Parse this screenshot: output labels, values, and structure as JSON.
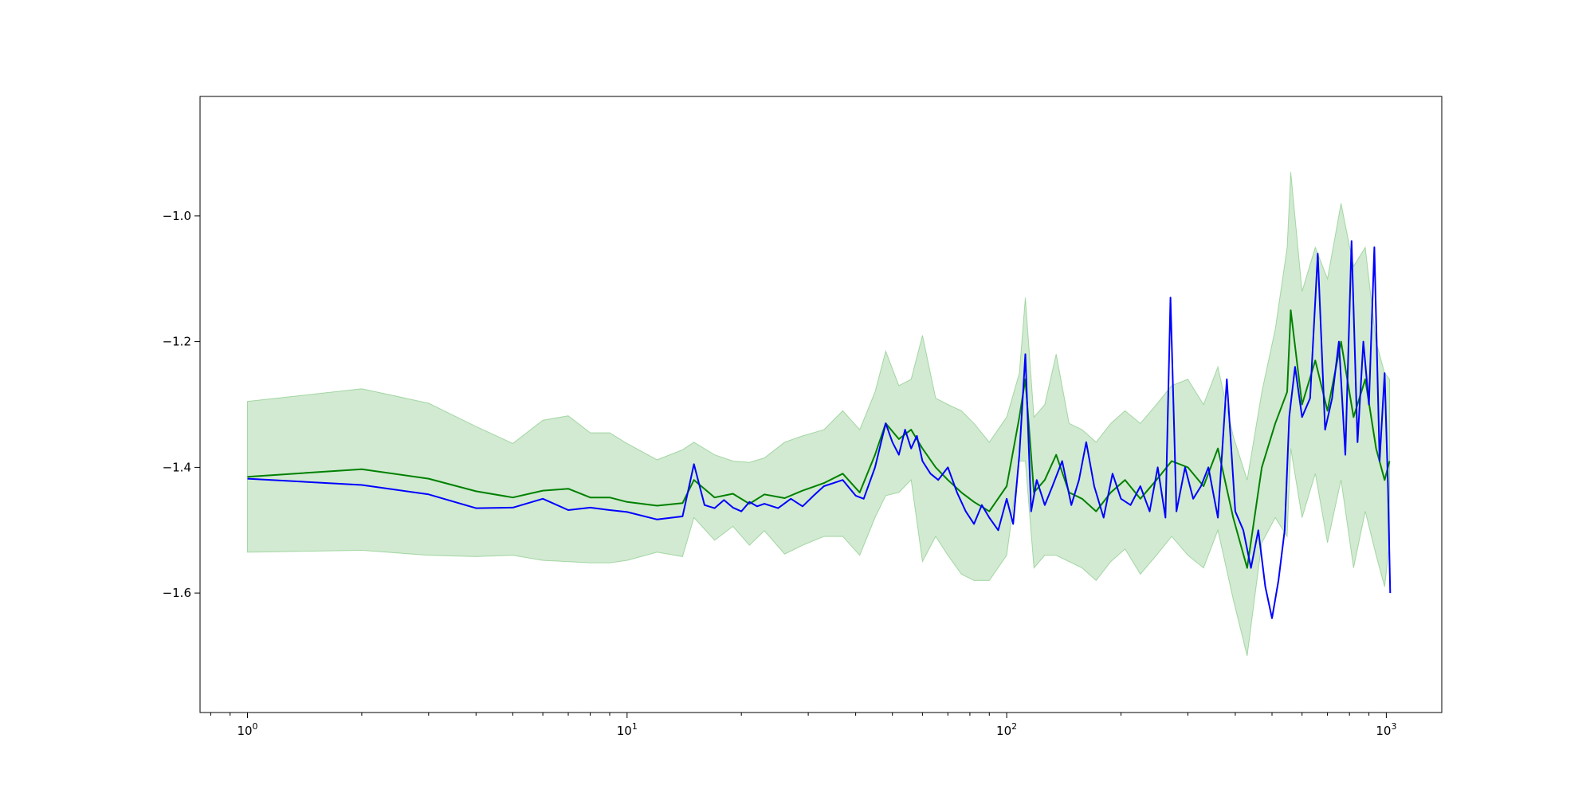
{
  "chart_data": {
    "type": "line",
    "xscale": "log",
    "xlim": [
      0.75,
      1400
    ],
    "ylim": [
      -1.79,
      -0.81
    ],
    "grid": false,
    "x_ticks": [
      {
        "value": 1,
        "base": "10",
        "exp": "0"
      },
      {
        "value": 10,
        "base": "10",
        "exp": "1"
      },
      {
        "value": 100,
        "base": "10",
        "exp": "2"
      },
      {
        "value": 1000,
        "base": "10",
        "exp": "3"
      }
    ],
    "y_ticks": [
      {
        "value": -1.6,
        "label": "−1.6"
      },
      {
        "value": -1.4,
        "label": "−1.4"
      },
      {
        "value": -1.2,
        "label": "−1.2"
      },
      {
        "value": -1.0,
        "label": "−1.0"
      }
    ],
    "series": [
      {
        "color": "#008000",
        "band_color": "#2ca02c",
        "x": [
          1,
          2,
          3,
          4,
          5,
          6,
          7,
          8,
          9,
          10,
          12,
          14,
          15,
          17,
          19,
          21,
          23,
          26,
          29,
          33,
          37,
          41,
          45,
          48,
          52,
          56,
          60,
          65,
          70,
          76,
          82,
          90,
          100,
          108,
          112,
          118,
          126,
          135,
          146,
          158,
          172,
          188,
          205,
          225,
          248,
          272,
          300,
          330,
          360,
          395,
          430,
          470,
          510,
          548,
          560,
          600,
          650,
          700,
          760,
          820,
          880,
          940,
          990,
          1020
        ],
        "y": [
          -1.415,
          -1.403,
          -1.418,
          -1.438,
          -1.448,
          -1.437,
          -1.434,
          -1.448,
          -1.448,
          -1.455,
          -1.461,
          -1.457,
          -1.42,
          -1.448,
          -1.442,
          -1.458,
          -1.443,
          -1.449,
          -1.437,
          -1.425,
          -1.41,
          -1.44,
          -1.38,
          -1.33,
          -1.355,
          -1.34,
          -1.37,
          -1.4,
          -1.42,
          -1.44,
          -1.455,
          -1.47,
          -1.43,
          -1.32,
          -1.26,
          -1.44,
          -1.42,
          -1.38,
          -1.44,
          -1.45,
          -1.47,
          -1.44,
          -1.42,
          -1.45,
          -1.42,
          -1.39,
          -1.4,
          -1.43,
          -1.37,
          -1.48,
          -1.56,
          -1.4,
          -1.33,
          -1.28,
          -1.15,
          -1.3,
          -1.23,
          -1.31,
          -1.2,
          -1.32,
          -1.26,
          -1.37,
          -1.42,
          -1.39
        ],
        "upper": [
          -1.295,
          -1.275,
          -1.298,
          -1.335,
          -1.362,
          -1.325,
          -1.318,
          -1.345,
          -1.345,
          -1.362,
          -1.388,
          -1.372,
          -1.36,
          -1.38,
          -1.39,
          -1.392,
          -1.385,
          -1.36,
          -1.35,
          -1.34,
          -1.31,
          -1.34,
          -1.28,
          -1.215,
          -1.27,
          -1.26,
          -1.19,
          -1.29,
          -1.3,
          -1.31,
          -1.33,
          -1.36,
          -1.32,
          -1.25,
          -1.13,
          -1.32,
          -1.3,
          -1.22,
          -1.33,
          -1.34,
          -1.36,
          -1.33,
          -1.31,
          -1.33,
          -1.3,
          -1.27,
          -1.26,
          -1.3,
          -1.24,
          -1.35,
          -1.42,
          -1.28,
          -1.18,
          -1.05,
          -0.93,
          -1.12,
          -1.05,
          -1.1,
          -0.98,
          -1.08,
          -1.05,
          -1.2,
          -1.25,
          -1.26
        ],
        "lower": [
          -1.535,
          -1.532,
          -1.54,
          -1.542,
          -1.54,
          -1.548,
          -1.55,
          -1.552,
          -1.552,
          -1.548,
          -1.535,
          -1.542,
          -1.48,
          -1.516,
          -1.494,
          -1.524,
          -1.501,
          -1.538,
          -1.524,
          -1.51,
          -1.51,
          -1.54,
          -1.48,
          -1.445,
          -1.44,
          -1.42,
          -1.55,
          -1.51,
          -1.54,
          -1.57,
          -1.58,
          -1.58,
          -1.54,
          -1.39,
          -1.39,
          -1.56,
          -1.54,
          -1.54,
          -1.55,
          -1.56,
          -1.58,
          -1.55,
          -1.53,
          -1.57,
          -1.54,
          -1.51,
          -1.54,
          -1.56,
          -1.5,
          -1.61,
          -1.7,
          -1.52,
          -1.48,
          -1.51,
          -1.37,
          -1.48,
          -1.41,
          -1.52,
          -1.42,
          -1.56,
          -1.47,
          -1.54,
          -1.59,
          -1.52
        ]
      },
      {
        "color": "#0000ff",
        "band_color": "#0000ff",
        "x": [
          1,
          2,
          3,
          4,
          5,
          6,
          7,
          8,
          9,
          10,
          12,
          14,
          15,
          16,
          17,
          18,
          19,
          20,
          21,
          22,
          23,
          25,
          27,
          29,
          31,
          33,
          35,
          37,
          40,
          42,
          45,
          48,
          50,
          52,
          54,
          56,
          58,
          60,
          63,
          66,
          70,
          74,
          78,
          82,
          86,
          90,
          95,
          100,
          104,
          108,
          112,
          116,
          120,
          126,
          132,
          140,
          148,
          155,
          162,
          170,
          180,
          190,
          200,
          212,
          225,
          238,
          250,
          262,
          270,
          280,
          295,
          310,
          325,
          340,
          360,
          380,
          400,
          420,
          440,
          460,
          480,
          500,
          520,
          540,
          555,
          575,
          600,
          630,
          660,
          690,
          720,
          750,
          780,
          810,
          840,
          870,
          900,
          930,
          960,
          990,
          1010,
          1024
        ],
        "y": [
          -1.418,
          -1.428,
          -1.443,
          -1.465,
          -1.464,
          -1.45,
          -1.468,
          -1.464,
          -1.468,
          -1.471,
          -1.483,
          -1.478,
          -1.395,
          -1.46,
          -1.465,
          -1.452,
          -1.464,
          -1.47,
          -1.455,
          -1.462,
          -1.458,
          -1.465,
          -1.45,
          -1.462,
          -1.445,
          -1.43,
          -1.425,
          -1.42,
          -1.445,
          -1.45,
          -1.4,
          -1.33,
          -1.36,
          -1.38,
          -1.34,
          -1.37,
          -1.35,
          -1.39,
          -1.41,
          -1.42,
          -1.4,
          -1.44,
          -1.47,
          -1.49,
          -1.46,
          -1.48,
          -1.5,
          -1.45,
          -1.49,
          -1.38,
          -1.22,
          -1.47,
          -1.42,
          -1.46,
          -1.43,
          -1.39,
          -1.46,
          -1.42,
          -1.36,
          -1.43,
          -1.48,
          -1.41,
          -1.45,
          -1.46,
          -1.43,
          -1.47,
          -1.4,
          -1.48,
          -1.13,
          -1.47,
          -1.4,
          -1.45,
          -1.43,
          -1.4,
          -1.48,
          -1.26,
          -1.47,
          -1.5,
          -1.56,
          -1.5,
          -1.59,
          -1.64,
          -1.58,
          -1.5,
          -1.32,
          -1.24,
          -1.32,
          -1.29,
          -1.06,
          -1.34,
          -1.29,
          -1.2,
          -1.38,
          -1.04,
          -1.36,
          -1.2,
          -1.3,
          -1.05,
          -1.39,
          -1.25,
          -1.43,
          -1.6
        ]
      }
    ]
  }
}
